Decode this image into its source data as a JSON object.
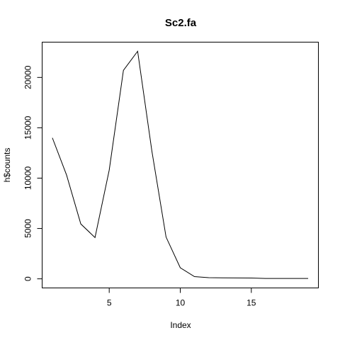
{
  "chart_data": {
    "type": "line",
    "title": "Sc2.fa",
    "xlabel": "Index",
    "ylabel": "h$counts",
    "x": [
      1,
      2,
      3,
      4,
      5,
      6,
      7,
      8,
      9,
      10,
      11,
      12,
      13,
      14,
      15,
      16,
      17,
      18,
      19
    ],
    "series": [
      {
        "values": [
          14000,
          10300,
          5450,
          4100,
          10800,
          20700,
          22600,
          12700,
          4150,
          1100,
          220,
          120,
          100,
          90,
          80,
          40,
          40,
          40,
          40
        ]
      }
    ],
    "xlim": [
      0.28,
      19.72
    ],
    "ylim": [
      -904,
      23504
    ],
    "xticks": [
      5,
      10,
      15
    ],
    "xtick_labels": [
      "5",
      "10",
      "15"
    ],
    "yticks": [
      0,
      5000,
      10000,
      15000,
      20000
    ],
    "ytick_labels": [
      "0",
      "5000",
      "10000",
      "15000",
      "20000"
    ],
    "grid": false,
    "legend": "none",
    "colors": {
      "line": "#000000",
      "background": "#ffffff"
    }
  }
}
